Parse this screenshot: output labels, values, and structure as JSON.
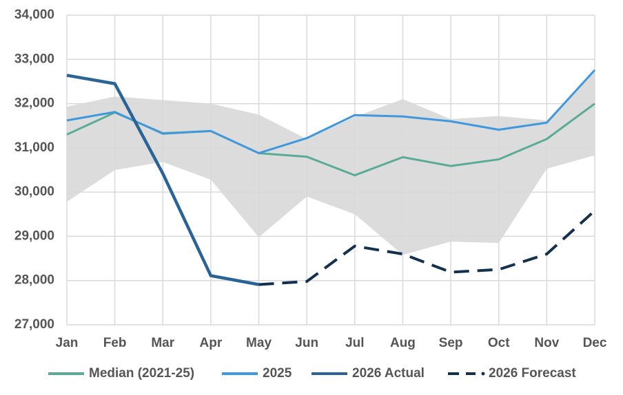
{
  "chart_data": {
    "type": "line",
    "categories": [
      "Jan",
      "Feb",
      "Mar",
      "Apr",
      "May",
      "Jun",
      "Jul",
      "Aug",
      "Sep",
      "Oct",
      "Nov",
      "Dec"
    ],
    "range": {
      "color": "#dcdcdc",
      "upper": [
        31930,
        32160,
        32080,
        32000,
        31750,
        31200,
        31700,
        32100,
        31650,
        31720,
        31620,
        32750
      ],
      "lower": [
        29780,
        30500,
        30680,
        30280,
        28980,
        29900,
        29500,
        28580,
        28880,
        28850,
        30530,
        30830
      ]
    },
    "series": [
      {
        "name": "Median (2021-25)",
        "color": "#5aab96",
        "values": [
          31300,
          31800,
          31330,
          31380,
          30880,
          30800,
          30380,
          30790,
          30590,
          30740,
          31200,
          32000
        ]
      },
      {
        "name": "2025",
        "color": "#3f97dc",
        "values": [
          31620,
          31810,
          31320,
          31380,
          30880,
          31220,
          31740,
          31710,
          31600,
          31410,
          31570,
          32760
        ]
      },
      {
        "name": "2026 Actual",
        "color": "#2a6496",
        "values": [
          32640,
          32450,
          30420,
          28110,
          27910,
          null,
          null,
          null,
          null,
          null,
          null,
          null
        ]
      },
      {
        "name": "2026 Forecast",
        "color": "#13304f",
        "dash": true,
        "values": [
          null,
          null,
          null,
          null,
          27910,
          27980,
          28780,
          28600,
          28190,
          28250,
          28600,
          29580
        ]
      }
    ],
    "ylim": [
      27000,
      34000
    ],
    "yticks": [
      {
        "value": 27000,
        "label": "27,000"
      },
      {
        "value": 28000,
        "label": "28,000"
      },
      {
        "value": 29000,
        "label": "29,000"
      },
      {
        "value": 30000,
        "label": "30,000"
      },
      {
        "value": 31000,
        "label": "31,000"
      },
      {
        "value": 32000,
        "label": "32,000"
      },
      {
        "value": 33000,
        "label": "33,000"
      },
      {
        "value": 34000,
        "label": "34,000"
      }
    ],
    "grid": true,
    "legend": "bottom"
  }
}
